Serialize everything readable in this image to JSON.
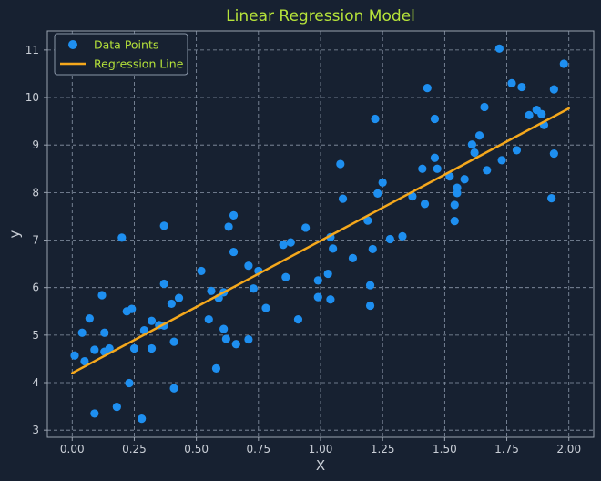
{
  "chart_data": {
    "type": "scatter",
    "title": "Linear Regression Model",
    "xlabel": "X",
    "ylabel": "y",
    "xlim": [
      -0.1,
      2.1
    ],
    "ylim": [
      2.85,
      11.4
    ],
    "x_ticks": [
      "0.00",
      "0.25",
      "0.50",
      "0.75",
      "1.00",
      "1.25",
      "1.50",
      "1.75",
      "2.00"
    ],
    "y_ticks": [
      "3",
      "4",
      "5",
      "6",
      "7",
      "8",
      "9",
      "10",
      "11"
    ],
    "grid": true,
    "legend_position": "top-left",
    "colors": {
      "background": "#172131",
      "points": "#1e8ff0",
      "line": "#f5a81c",
      "title": "#b6e33a",
      "legend_text": "#b6e33a",
      "text": "#c9ced6",
      "grid": "#8a96a8",
      "spine": "#9aa3b0"
    },
    "series": [
      {
        "name": "Data Points",
        "kind": "scatter",
        "points": [
          [
            0.01,
            4.57
          ],
          [
            0.04,
            5.05
          ],
          [
            0.05,
            4.45
          ],
          [
            0.07,
            5.35
          ],
          [
            0.09,
            3.35
          ],
          [
            0.09,
            4.69
          ],
          [
            0.12,
            5.84
          ],
          [
            0.13,
            5.05
          ],
          [
            0.13,
            4.65
          ],
          [
            0.15,
            4.72
          ],
          [
            0.18,
            3.49
          ],
          [
            0.2,
            7.05
          ],
          [
            0.22,
            5.5
          ],
          [
            0.23,
            3.99
          ],
          [
            0.24,
            5.55
          ],
          [
            0.25,
            4.72
          ],
          [
            0.28,
            3.24
          ],
          [
            0.29,
            5.1
          ],
          [
            0.32,
            4.72
          ],
          [
            0.32,
            5.3
          ],
          [
            0.35,
            5.21
          ],
          [
            0.37,
            6.08
          ],
          [
            0.37,
            7.3
          ],
          [
            0.37,
            5.2
          ],
          [
            0.4,
            5.66
          ],
          [
            0.41,
            3.88
          ],
          [
            0.41,
            4.86
          ],
          [
            0.43,
            5.78
          ],
          [
            0.52,
            6.35
          ],
          [
            0.55,
            5.33
          ],
          [
            0.56,
            5.93
          ],
          [
            0.58,
            4.3
          ],
          [
            0.59,
            5.78
          ],
          [
            0.61,
            5.9
          ],
          [
            0.61,
            5.13
          ],
          [
            0.62,
            4.92
          ],
          [
            0.63,
            7.28
          ],
          [
            0.65,
            6.75
          ],
          [
            0.65,
            7.52
          ],
          [
            0.66,
            4.81
          ],
          [
            0.71,
            6.46
          ],
          [
            0.71,
            4.91
          ],
          [
            0.73,
            5.98
          ],
          [
            0.75,
            6.35
          ],
          [
            0.78,
            5.57
          ],
          [
            0.85,
            6.9
          ],
          [
            0.86,
            6.22
          ],
          [
            0.88,
            6.95
          ],
          [
            0.91,
            5.33
          ],
          [
            0.94,
            7.26
          ],
          [
            0.99,
            6.15
          ],
          [
            0.99,
            5.8
          ],
          [
            1.03,
            6.29
          ],
          [
            1.04,
            5.75
          ],
          [
            1.04,
            7.06
          ],
          [
            1.05,
            6.82
          ],
          [
            1.08,
            8.6
          ],
          [
            1.09,
            7.87
          ],
          [
            1.13,
            6.62
          ],
          [
            1.19,
            7.41
          ],
          [
            1.2,
            6.05
          ],
          [
            1.2,
            5.62
          ],
          [
            1.21,
            6.81
          ],
          [
            1.22,
            9.55
          ],
          [
            1.23,
            7.98
          ],
          [
            1.25,
            8.21
          ],
          [
            1.28,
            7.02
          ],
          [
            1.33,
            7.08
          ],
          [
            1.37,
            7.92
          ],
          [
            1.41,
            8.5
          ],
          [
            1.42,
            7.76
          ],
          [
            1.43,
            10.2
          ],
          [
            1.46,
            9.55
          ],
          [
            1.46,
            8.73
          ],
          [
            1.47,
            8.5
          ],
          [
            1.52,
            8.34
          ],
          [
            1.54,
            7.74
          ],
          [
            1.54,
            7.4
          ],
          [
            1.55,
            7.99
          ],
          [
            1.55,
            8.1
          ],
          [
            1.58,
            8.28
          ],
          [
            1.61,
            9.01
          ],
          [
            1.62,
            8.84
          ],
          [
            1.64,
            9.2
          ],
          [
            1.66,
            9.8
          ],
          [
            1.67,
            8.47
          ],
          [
            1.73,
            8.68
          ],
          [
            1.72,
            11.03
          ],
          [
            1.77,
            10.3
          ],
          [
            1.79,
            8.89
          ],
          [
            1.81,
            10.22
          ],
          [
            1.84,
            9.63
          ],
          [
            1.87,
            9.74
          ],
          [
            1.89,
            9.65
          ],
          [
            1.9,
            9.42
          ],
          [
            1.93,
            7.88
          ],
          [
            1.94,
            8.82
          ],
          [
            1.94,
            10.17
          ],
          [
            1.98,
            10.71
          ]
        ]
      },
      {
        "name": "Regression Line",
        "kind": "line",
        "x": [
          0.0,
          2.0
        ],
        "y": [
          4.2,
          9.77
        ]
      }
    ]
  }
}
